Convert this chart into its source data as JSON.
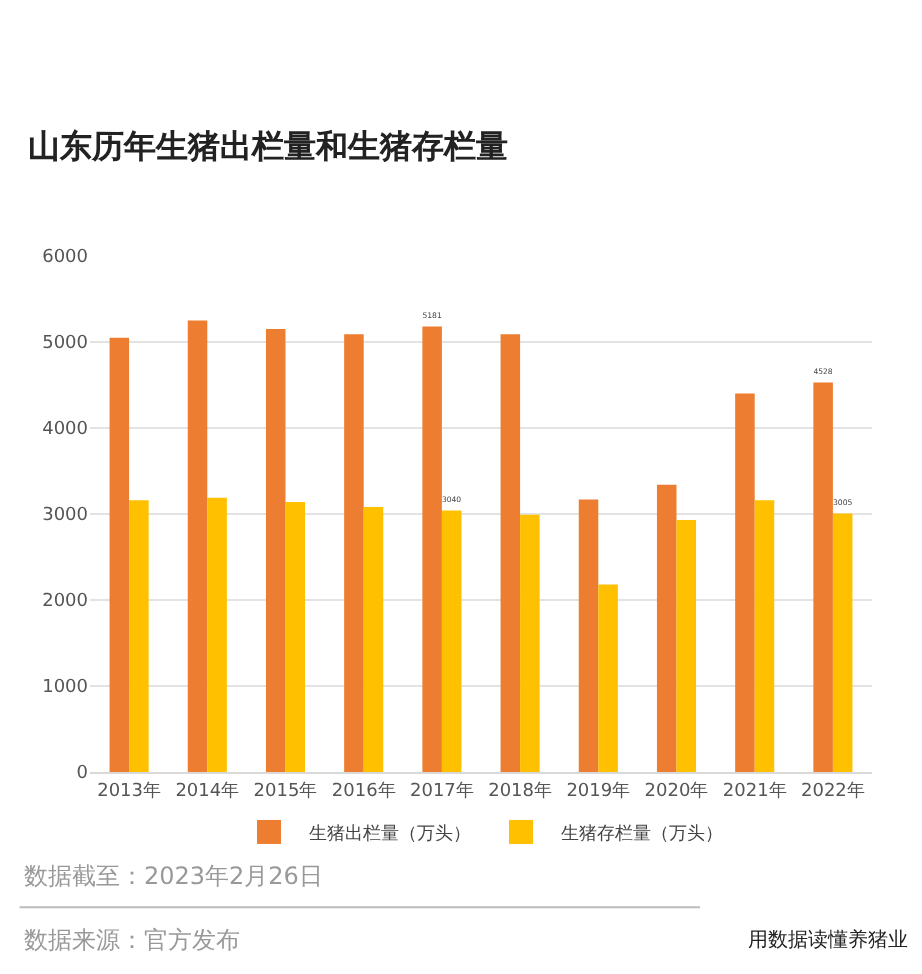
{
  "chart_data": {
    "type": "bar",
    "title": "山东历年生猪出栏量和生猪存栏量",
    "categories": [
      "2013年",
      "2014年",
      "2015年",
      "2016年",
      "2017年",
      "2018年",
      "2019年",
      "2020年",
      "2021年",
      "2022年"
    ],
    "series": [
      {
        "name": "生猪出栏量（万头）",
        "color": "#ed7d31",
        "values": [
          5050,
          5250,
          5150,
          5090,
          5181,
          5090,
          3170,
          3340,
          4400,
          4528
        ],
        "value_labels": [
          null,
          null,
          null,
          null,
          "5181",
          null,
          null,
          null,
          null,
          "4528"
        ]
      },
      {
        "name": "生猪存栏量（万头）",
        "color": "#ffc000",
        "values": [
          3160,
          3190,
          3140,
          3080,
          3040,
          2990,
          2180,
          2930,
          3160,
          3005
        ],
        "value_labels": [
          null,
          null,
          null,
          null,
          "3040",
          null,
          null,
          null,
          null,
          "3005"
        ]
      }
    ],
    "ylim": [
      0,
      6000
    ],
    "yticks": [
      0,
      1000,
      2000,
      3000,
      4000,
      5000,
      6000
    ],
    "grid": "y",
    "legend": "bottom",
    "annotations": [
      "数据截至：2023年2月26日",
      "数据来源：官方发布",
      "用数据读懂养猪业"
    ]
  }
}
